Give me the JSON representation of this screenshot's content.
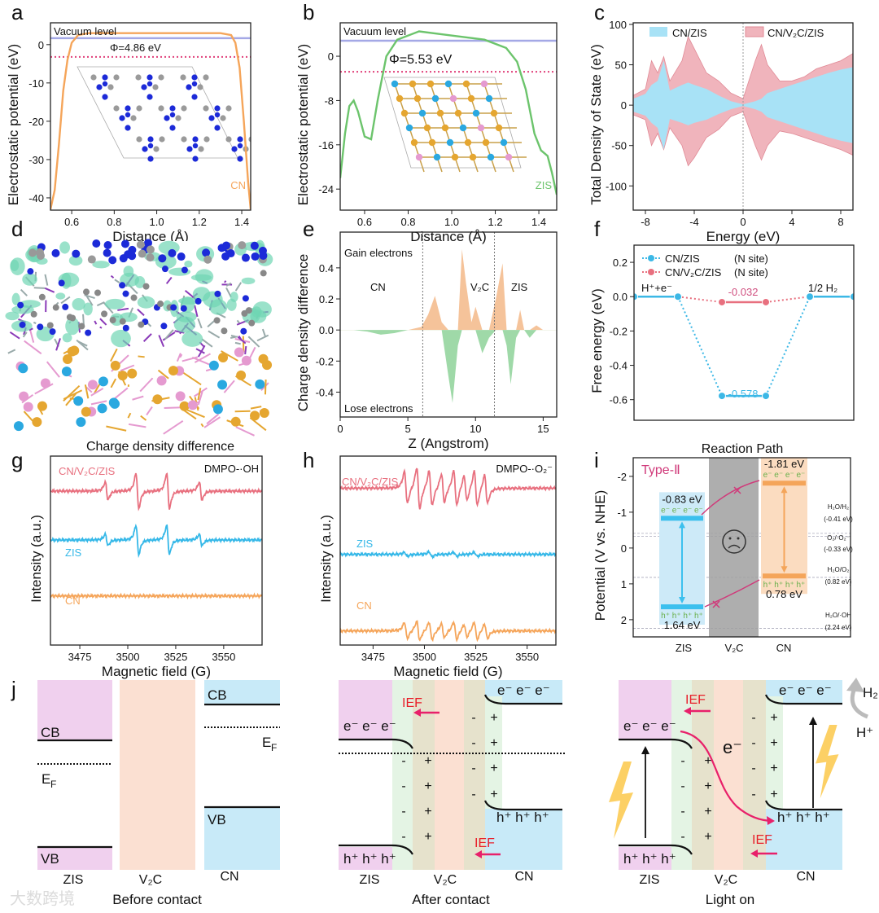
{
  "panel_labels": [
    "a",
    "b",
    "c",
    "d",
    "e",
    "f",
    "g",
    "h",
    "i",
    "j"
  ],
  "chart_data": [
    {
      "panel": "a",
      "type": "line",
      "xlabel": "Distance (Å)",
      "ylabel": "Electrostatic potential (eV)",
      "xticklabels": [
        "0.6",
        "0.8",
        "1.0",
        "1.2",
        "1.4"
      ],
      "yticklabels": [
        "0",
        "-10",
        "-20",
        "-30",
        "-40"
      ],
      "xlim": [
        0.5,
        1.442
      ],
      "ylim": [
        -43.2,
        5.7
      ],
      "series": [
        {
          "name": "CN",
          "color": "#f5a55a",
          "x": [
            0.5,
            0.52,
            0.54,
            0.56,
            0.58,
            0.6,
            0.63,
            0.68,
            0.8,
            1.0,
            1.2,
            1.3,
            1.35,
            1.37,
            1.39,
            1.41,
            1.43,
            1.442
          ],
          "y": [
            -43,
            -38,
            -26,
            -12,
            -4,
            0.5,
            2.5,
            3,
            3,
            3,
            3,
            3,
            2.5,
            0.5,
            -6,
            -20,
            -36,
            -43
          ]
        }
      ],
      "vacuum_level": {
        "label": "Vacuum level",
        "value": 1.7
      },
      "fermi_level": -3.2,
      "work_function_label": "Φ=4.86 eV"
    },
    {
      "panel": "b",
      "type": "line",
      "xlabel": "Distance (Å)",
      "ylabel": "Electrostatic potential (eV)",
      "xticklabels": [
        "0.6",
        "0.8",
        "1.0",
        "1.2",
        "1.4"
      ],
      "yticklabels": [
        "0",
        "-8",
        "-16",
        "-24"
      ],
      "xlim": [
        0.488,
        1.482
      ],
      "ylim": [
        -27.8,
        6.04
      ],
      "series": [
        {
          "name": "ZIS",
          "color": "#6cc46c",
          "x": [
            0.488,
            0.51,
            0.53,
            0.55,
            0.57,
            0.6,
            0.63,
            0.66,
            0.7,
            0.75,
            0.85,
            0.95,
            1.05,
            1.15,
            1.25,
            1.3,
            1.34,
            1.38,
            1.41,
            1.44,
            1.46,
            1.482
          ],
          "y": [
            -22,
            -14,
            -9,
            -8,
            -10,
            -14.5,
            -15,
            -8,
            0,
            3,
            4.5,
            4,
            3.5,
            3,
            1.5,
            -1,
            -6,
            -14,
            -17,
            -18,
            -21,
            -25
          ]
        }
      ],
      "vacuum_level": {
        "label": "Vacuum level",
        "value": 2.8
      },
      "fermi_level": -2.8,
      "work_function_label": "Φ=5.53 eV"
    },
    {
      "panel": "c",
      "type": "area",
      "xlabel": "Energy (eV)",
      "ylabel": "Total Density of State (eV)",
      "xticklabels": [
        "-8",
        "-4",
        "0",
        "4",
        "8"
      ],
      "yticklabels": [
        "100",
        "50",
        "0",
        "-50",
        "-100"
      ],
      "xlim": [
        -9,
        9
      ],
      "ylim": [
        -130,
        102
      ],
      "legend": [
        "CN/ZIS",
        "CN/V₂C/ZIS"
      ],
      "series": [
        {
          "name": "CN/V₂C/ZIS",
          "color": "#f0b4bc",
          "x": [
            -9,
            -8,
            -7.5,
            -7,
            -6.5,
            -6,
            -5,
            -4.5,
            -4,
            -3,
            -2,
            -1,
            0,
            1,
            1.5,
            2,
            3,
            4,
            5,
            6,
            7,
            8,
            9
          ],
          "upper": [
            12,
            20,
            55,
            40,
            60,
            30,
            55,
            85,
            70,
            40,
            30,
            15,
            8,
            55,
            75,
            50,
            30,
            30,
            35,
            45,
            50,
            55,
            64
          ],
          "lower": [
            -12,
            -18,
            -50,
            -35,
            -55,
            -28,
            -50,
            -75,
            -65,
            -40,
            -30,
            -14,
            -8,
            -50,
            -68,
            -50,
            -32,
            -35,
            -40,
            -45,
            -50,
            -55,
            -62
          ]
        },
        {
          "name": "CN/ZIS",
          "color": "#a8e2f6",
          "x": [
            -9,
            -8,
            -7.5,
            -7,
            -6.5,
            -6,
            -5,
            -4.5,
            -4,
            -3,
            -2,
            -1,
            0,
            1,
            1.5,
            2,
            3,
            4,
            5,
            6,
            7,
            8,
            9
          ],
          "upper": [
            8,
            14,
            25,
            30,
            55,
            18,
            25,
            28,
            25,
            20,
            12,
            5,
            1,
            5,
            8,
            15,
            20,
            25,
            30,
            35,
            40,
            44,
            47
          ],
          "lower": [
            -8,
            -13,
            -22,
            -28,
            -55,
            -17,
            -22,
            -25,
            -22,
            -18,
            -11,
            -5,
            -1,
            -5,
            -8,
            -15,
            -20,
            -25,
            -30,
            -35,
            -40,
            -44,
            -47
          ]
        }
      ]
    },
    {
      "panel": "e",
      "type": "area",
      "xlabel": "Z (Angstrom)",
      "ylabel": "Charge density difference",
      "xticklabels": [
        "0",
        "5",
        "10",
        "15"
      ],
      "yticklabels": [
        "0.4",
        "0.2",
        "0.0",
        "-0.2",
        "-0.4"
      ],
      "xlim": [
        0,
        16
      ],
      "ylim": [
        -0.56,
        0.63
      ],
      "region_boundaries": [
        6.1,
        11.4
      ],
      "region_labels": [
        "CN",
        "V₂C",
        "ZIS"
      ],
      "gain_label": "Gain electrons",
      "lose_label": "Lose electrons",
      "positive_color": "#f5c39a",
      "negative_color": "#9fd9a8",
      "series": [
        {
          "name": "Δρ",
          "x": [
            0,
            1,
            2,
            3,
            4,
            5,
            6,
            6.5,
            7,
            7.5,
            8,
            8.3,
            8.7,
            9,
            9.3,
            9.7,
            10,
            10.5,
            11,
            11.5,
            12,
            12.3,
            12.6,
            13,
            13.3,
            13.6,
            14,
            14.5,
            15,
            16
          ],
          "y": [
            0,
            0,
            -0.01,
            -0.03,
            -0.02,
            0,
            0.02,
            0.1,
            0.22,
            0.05,
            -0.3,
            -0.47,
            -0.1,
            0.52,
            0.3,
            0.05,
            0.15,
            -0.15,
            -0.05,
            0.2,
            0.43,
            -0.1,
            -0.35,
            -0.05,
            0.13,
            0,
            -0.05,
            0.03,
            0,
            0
          ]
        }
      ]
    },
    {
      "panel": "f",
      "type": "line",
      "xlabel": "",
      "ylabel": "Free energy (eV)",
      "xticklabels": [],
      "yticklabels": [
        "0.2",
        "0.0",
        "-0.2",
        "-0.4",
        "-0.6"
      ],
      "xlim": [
        0,
        5
      ],
      "ylim": [
        -0.72,
        0.3
      ],
      "step_labels": [
        "H⁺+e⁻",
        "1/2 H₂"
      ],
      "series": [
        {
          "name": "CN/ZIS",
          "site": "(N site)",
          "color": "#3cb8e6",
          "x": [
            0,
            1,
            2,
            3,
            4,
            5
          ],
          "y": [
            0,
            0,
            -0.578,
            -0.578,
            0,
            0
          ],
          "value_label": "-0.578"
        },
        {
          "name": "CN/V₂C/ZIS",
          "site": "(N site)",
          "color": "#e8707f",
          "x": [
            0,
            1,
            2,
            3,
            4,
            5
          ],
          "y": [
            0,
            0,
            -0.032,
            -0.032,
            0,
            0
          ],
          "value_label": "-0.032"
        }
      ]
    },
    {
      "panel": "g",
      "type": "line",
      "xlabel": "Magnetic field (G)",
      "ylabel": "Intensity (a.u.)",
      "xticklabels": [
        "3475",
        "3500",
        "3525",
        "3550"
      ],
      "yticklabels": [],
      "xlim": [
        3459.7,
        3570
      ],
      "ylim": [
        0,
        10
      ],
      "annotation": "DMPO-·OH",
      "series": [
        {
          "name": "CN/V₂C/ZIS",
          "color": "#e8707f",
          "baseline": 8.15,
          "peaks": [
            3489,
            3505,
            3521,
            3538
          ],
          "amplitudes": [
            0.55,
            1.1,
            1.1,
            0.55
          ]
        },
        {
          "name": "ZIS",
          "color": "#35b8e8",
          "baseline": 5.56,
          "peaks": [
            3489,
            3505,
            3521,
            3538
          ],
          "amplitudes": [
            0.35,
            0.9,
            0.9,
            0.35
          ]
        },
        {
          "name": "CN",
          "color": "#f5a55a",
          "baseline": 2.6,
          "peaks": [],
          "amplitudes": []
        }
      ]
    },
    {
      "panel": "h",
      "type": "line",
      "xlabel": "Magnetic field (G)",
      "ylabel": "Intensity (a.u.)",
      "xticklabels": [
        "3475",
        "3500",
        "3525",
        "3550"
      ],
      "yticklabels": [],
      "xlim": [
        3459,
        3564
      ],
      "ylim": [
        0,
        10
      ],
      "annotation": "DMPO-·O₂⁻",
      "series": [
        {
          "name": "CN/V₂C/ZIS",
          "color": "#e8707f",
          "baseline": 8.3,
          "peaks": [
            3491,
            3497,
            3503,
            3509,
            3515,
            3520,
            3525,
            3530
          ],
          "amplitudes": [
            1.0,
            1.3,
            1.1,
            0.9,
            1.1,
            0.8,
            1.1,
            0.9
          ]
        },
        {
          "name": "ZIS",
          "color": "#35b8e8",
          "baseline": 4.8,
          "peaks": [
            3491,
            3503,
            3515,
            3525
          ],
          "amplitudes": [
            0.12,
            0.15,
            0.12,
            0.12
          ]
        },
        {
          "name": "CN",
          "color": "#f5a55a",
          "baseline": 0.75,
          "peaks": [
            3491,
            3497,
            3503,
            3509,
            3515,
            3520,
            3525,
            3530
          ],
          "amplitudes": [
            0.5,
            0.6,
            0.55,
            0.45,
            0.55,
            0.4,
            0.55,
            0.45
          ]
        }
      ]
    }
  ],
  "panel_d": {
    "caption": "Charge density difference"
  },
  "panel_i": {
    "title": "Reaction Path",
    "ylabel": "Potential (V vs. NHE)",
    "yticklabels": [
      "-2",
      "-1",
      "0",
      "1",
      "2"
    ],
    "ylim": [
      -2.52,
      2.48
    ],
    "scheme_label": "Type-Ⅱ",
    "categories": [
      "ZIS",
      "V₂C",
      "CN"
    ],
    "materials": [
      {
        "name": "ZIS",
        "cb": -0.83,
        "vb": 1.64,
        "cb_label": "-0.83 eV",
        "vb_label": "1.64 eV",
        "color": "#3cc0ee",
        "bg": "#cdeaf8"
      },
      {
        "name": "CN",
        "cb": -1.81,
        "vb": 0.78,
        "cb_label": "-1.81 eV",
        "vb_label": "0.78 eV",
        "color": "#f4a55a",
        "bg": "#fbdcc0"
      }
    ],
    "electrons": "e⁻ e⁻ e⁻ e⁻",
    "holes": "h⁺ h⁺ h⁺ h⁺",
    "references": [
      {
        "couple": "H₂O/H₂",
        "value": -0.41,
        "label": "(-0.41 eV)"
      },
      {
        "couple": "O₂/·O₂⁻",
        "value": -0.33,
        "label": "(-0.33 eV)"
      },
      {
        "couple": "H₂O/O₂",
        "value": 0.82,
        "label": "(0.82 eV)"
      },
      {
        "couple": "H₂O/·OH",
        "value": 2.24,
        "label": "(2.24 eV)"
      }
    ]
  },
  "panel_j": {
    "cb": "CB",
    "vb": "VB",
    "ef": "E",
    "ef_sub": "F",
    "electrons": "e⁻ e⁻ e⁻",
    "holes": "h⁺ h⁺ h⁺",
    "ief": "IEF",
    "minus": "-",
    "plus": "+",
    "e_single": "e⁻",
    "h2": "H₂",
    "hplus": "H⁺",
    "materials": [
      "ZIS",
      "V₂C",
      "CN"
    ],
    "states": [
      "Before contact",
      "After contact",
      "Light on"
    ]
  },
  "watermark": "大数跨境"
}
